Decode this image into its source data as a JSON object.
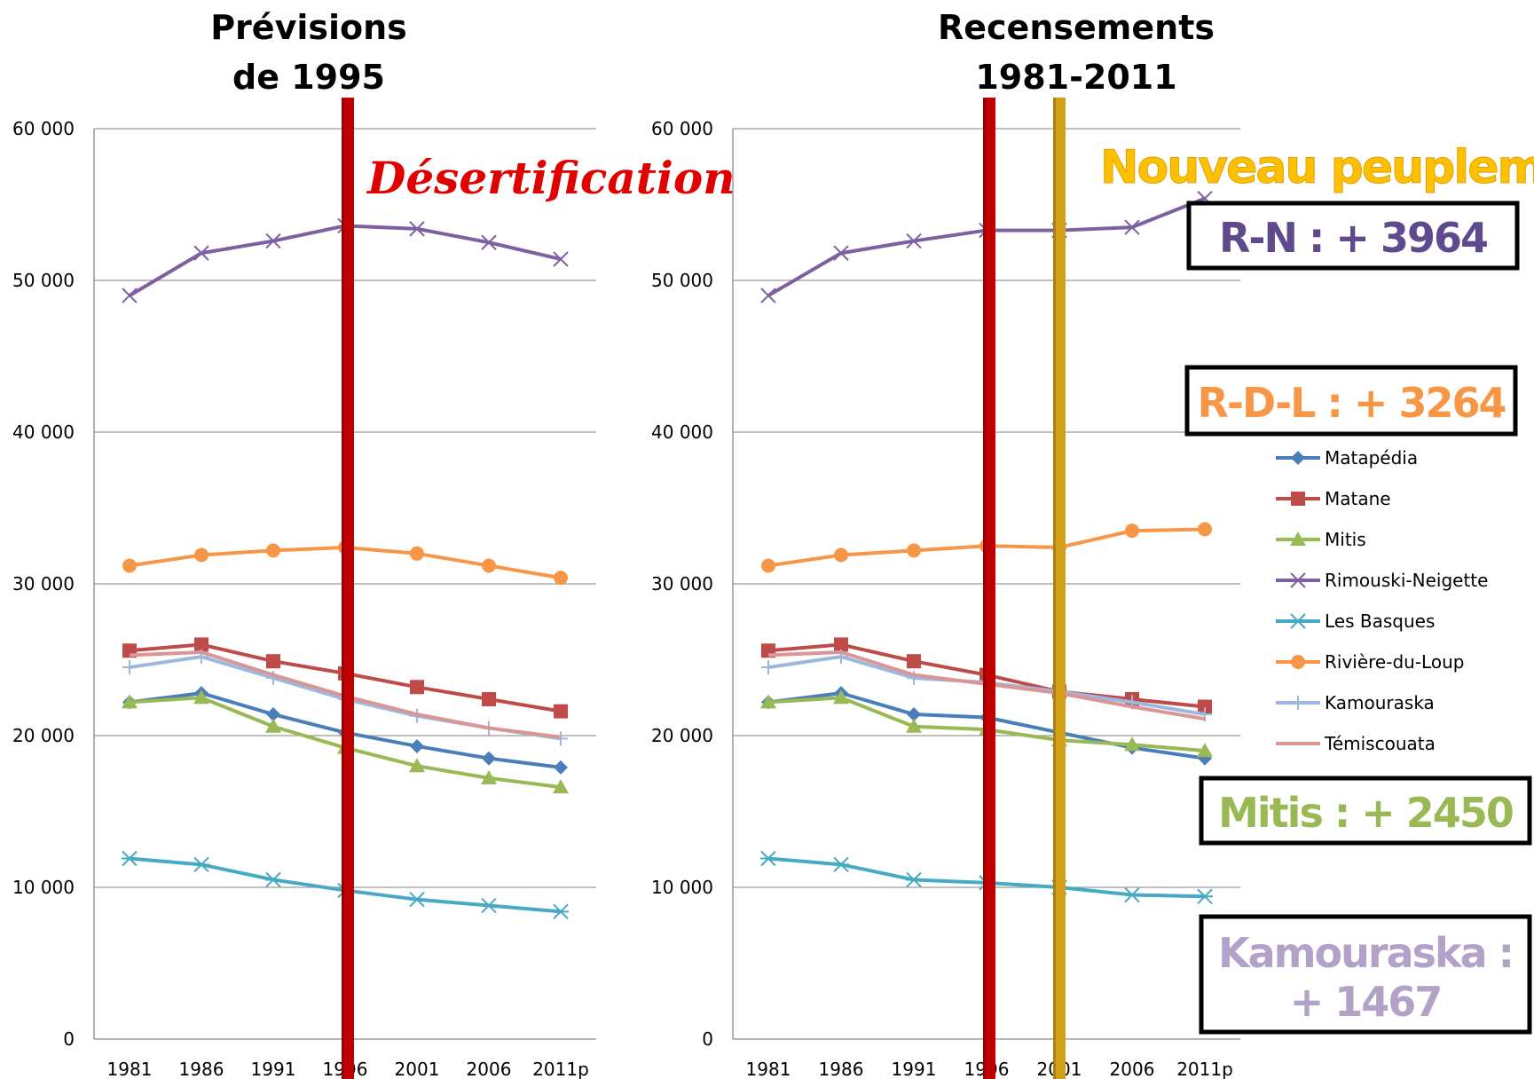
{
  "colors": {
    "Matapédia": "#4a7ebb",
    "Matane": "#be4b48",
    "Mitis": "#98b954",
    "Rimouski-Neigette": "#7d60a0",
    "Les Basques": "#46aac4",
    "Rivière-du-Loup": "#f79646",
    "Kamouraska": "#9db8de",
    "Témiscouata": "#da9694",
    "red_bar": "#c00000",
    "gold_bar": "#d4a017"
  },
  "chart_data": [
    {
      "type": "line",
      "title": [
        "Prévisions",
        "de 1995"
      ],
      "categories": [
        "1981",
        "1986",
        "1991",
        "1996",
        "2001",
        "2006",
        "2011p"
      ],
      "ylim": [
        0,
        60000
      ],
      "yticks": [
        "0",
        "10 000",
        "20 000",
        "30 000",
        "40 000",
        "50 000",
        "60 000"
      ],
      "grid": true,
      "vertical_markers": [
        {
          "category": "1996",
          "color": "red"
        }
      ],
      "annotation": "Désertification",
      "series": [
        {
          "name": "Matapédia",
          "marker": "diamond",
          "values": [
            22200,
            22800,
            21400,
            20200,
            19300,
            18500,
            17900
          ]
        },
        {
          "name": "Matane",
          "marker": "square",
          "values": [
            25600,
            26000,
            24900,
            24100,
            23200,
            22400,
            21600
          ]
        },
        {
          "name": "Mitis",
          "marker": "triangle",
          "values": [
            22200,
            22500,
            20600,
            19200,
            18000,
            17200,
            16600
          ]
        },
        {
          "name": "Rimouski-Neigette",
          "marker": "x",
          "values": [
            49000,
            51800,
            52600,
            53600,
            53400,
            52500,
            51400
          ]
        },
        {
          "name": "Les Basques",
          "marker": "star",
          "values": [
            11900,
            11500,
            10500,
            9800,
            9200,
            8800,
            8400
          ]
        },
        {
          "name": "Rivière-du-Loup",
          "marker": "circle",
          "values": [
            31200,
            31900,
            32200,
            32400,
            32000,
            31200,
            30400
          ]
        },
        {
          "name": "Kamouraska",
          "marker": "plus",
          "values": [
            24500,
            25200,
            23800,
            22400,
            21300,
            20500,
            19800
          ]
        },
        {
          "name": "Témiscouata",
          "marker": "none",
          "values": [
            25300,
            25500,
            24000,
            22600,
            21400,
            20500,
            19900
          ]
        }
      ]
    },
    {
      "type": "line",
      "title": [
        "Recensements",
        "1981-2011"
      ],
      "categories": [
        "1981",
        "1986",
        "1991",
        "1996",
        "2001",
        "2006",
        "2011p"
      ],
      "ylim": [
        0,
        60000
      ],
      "yticks": [
        "0",
        "10 000",
        "20 000",
        "30 000",
        "40 000",
        "50 000",
        "60 000"
      ],
      "grid": true,
      "vertical_markers": [
        {
          "category": "1996",
          "color": "red"
        },
        {
          "category": "2001",
          "color": "gold"
        }
      ],
      "annotation": "Nouveau peuplement",
      "legend": "right",
      "series": [
        {
          "name": "Matapédia",
          "marker": "diamond",
          "values": [
            22200,
            22800,
            21400,
            21200,
            20200,
            19200,
            18500
          ]
        },
        {
          "name": "Matane",
          "marker": "square",
          "values": [
            25600,
            26000,
            24900,
            24000,
            22900,
            22400,
            21900
          ]
        },
        {
          "name": "Mitis",
          "marker": "triangle",
          "values": [
            22200,
            22500,
            20600,
            20400,
            19700,
            19400,
            19000
          ]
        },
        {
          "name": "Rimouski-Neigette",
          "marker": "x",
          "values": [
            49000,
            51800,
            52600,
            53300,
            53300,
            53500,
            55400
          ]
        },
        {
          "name": "Les Basques",
          "marker": "star",
          "values": [
            11900,
            11500,
            10500,
            10300,
            10000,
            9500,
            9400
          ]
        },
        {
          "name": "Rivière-du-Loup",
          "marker": "circle",
          "values": [
            31200,
            31900,
            32200,
            32500,
            32400,
            33500,
            33600
          ]
        },
        {
          "name": "Kamouraska",
          "marker": "plus",
          "values": [
            24500,
            25200,
            23800,
            23500,
            22900,
            22200,
            21400
          ]
        },
        {
          "name": "Témiscouata",
          "marker": "none",
          "values": [
            25300,
            25500,
            24000,
            23400,
            22800,
            21900,
            21100
          ]
        }
      ]
    }
  ],
  "callouts": [
    {
      "text": "R-N : + 3964",
      "color": "#5e4a8c"
    },
    {
      "text": "R-D-L : + 3264",
      "color": "#f79646"
    },
    {
      "text": "Mitis : + 2450",
      "color": "#98b954"
    },
    {
      "text": "Kamouraska :",
      "text2": "+ 1467",
      "color": "#b3a2c7"
    }
  ]
}
